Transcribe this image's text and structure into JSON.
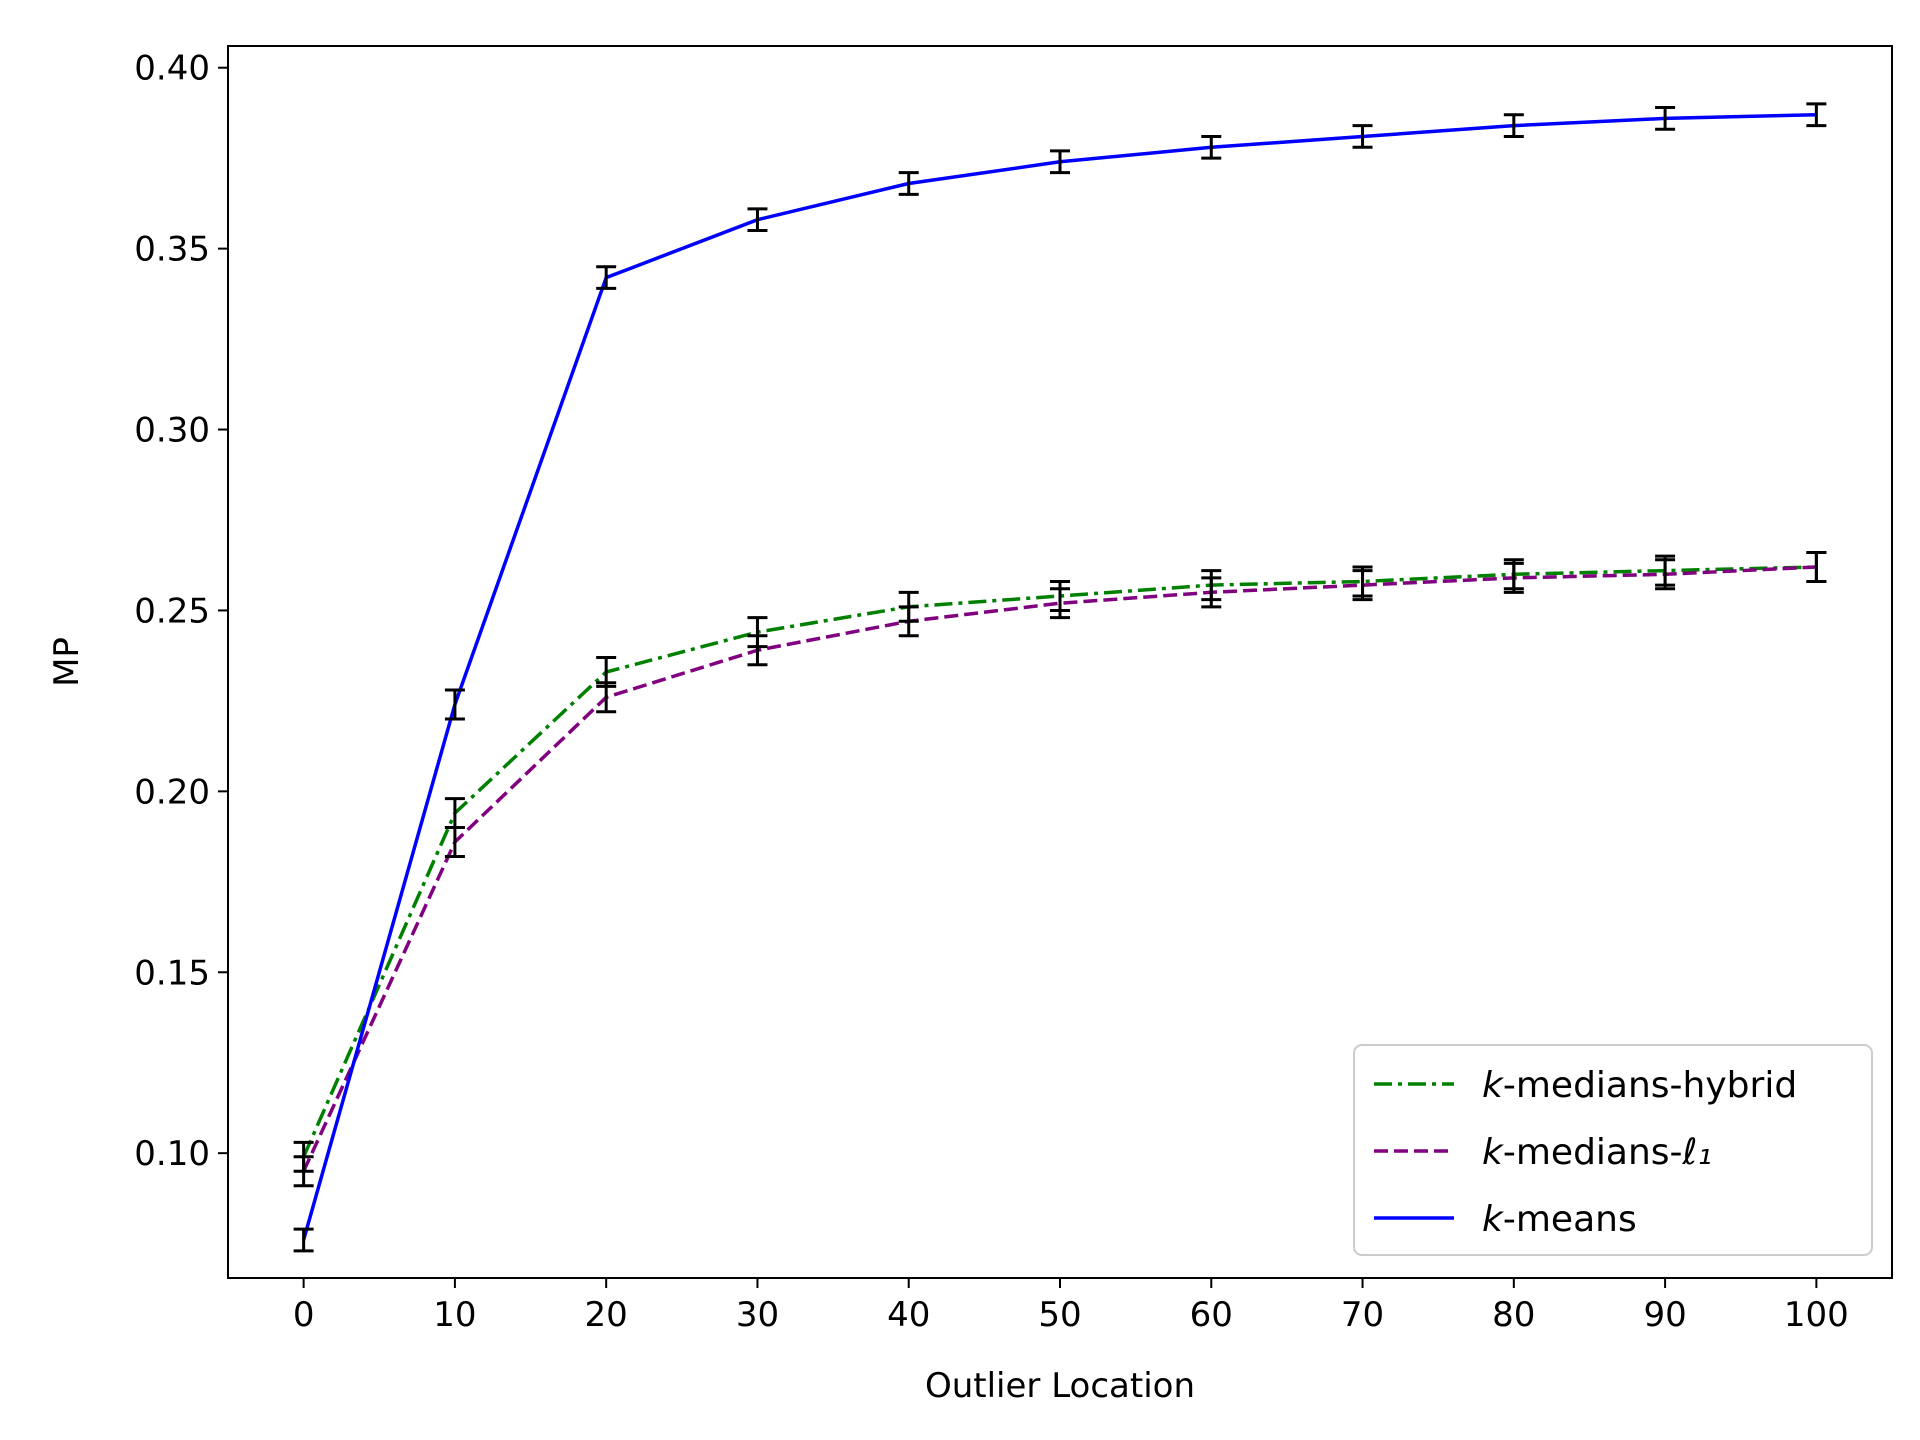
{
  "chart_data": {
    "type": "line",
    "title": "",
    "xlabel": "Outlier Location",
    "ylabel": "MP",
    "xlim": [
      -5,
      105
    ],
    "ylim": [
      0.0655,
      0.406
    ],
    "xticks": [
      0,
      10,
      20,
      30,
      40,
      50,
      60,
      70,
      80,
      90,
      100
    ],
    "xtick_labels": [
      "0",
      "10",
      "20",
      "30",
      "40",
      "50",
      "60",
      "70",
      "80",
      "90",
      "100"
    ],
    "yticks": [
      0.1,
      0.15,
      0.2,
      0.25,
      0.3,
      0.35,
      0.4
    ],
    "ytick_labels": [
      "0.10",
      "0.15",
      "0.20",
      "0.25",
      "0.30",
      "0.35",
      "0.40"
    ],
    "grid": false,
    "legend_position": "bottom-right",
    "x": [
      0,
      10,
      20,
      30,
      40,
      50,
      60,
      70,
      80,
      90,
      100
    ],
    "series": [
      {
        "name_prefix": "k",
        "name_suffix": "-medians-hybrid",
        "color": "#008000",
        "style": "dashdot",
        "values": [
          0.099,
          0.194,
          0.233,
          0.244,
          0.251,
          0.254,
          0.257,
          0.258,
          0.26,
          0.261,
          0.262
        ],
        "errors": [
          0.004,
          0.004,
          0.004,
          0.004,
          0.004,
          0.004,
          0.004,
          0.004,
          0.004,
          0.004,
          0.004
        ]
      },
      {
        "name_prefix": "k",
        "name_suffix": "-medians-",
        "name_math": "ℓ₁",
        "color": "#800080",
        "style": "dashed",
        "values": [
          0.095,
          0.186,
          0.226,
          0.239,
          0.247,
          0.252,
          0.255,
          0.257,
          0.259,
          0.26,
          0.262
        ],
        "errors": [
          0.004,
          0.004,
          0.004,
          0.004,
          0.004,
          0.004,
          0.004,
          0.004,
          0.004,
          0.004,
          0.004
        ]
      },
      {
        "name_prefix": "k",
        "name_suffix": "-means",
        "color": "#0000ff",
        "style": "solid",
        "values": [
          0.076,
          0.224,
          0.342,
          0.358,
          0.368,
          0.374,
          0.378,
          0.381,
          0.384,
          0.386,
          0.387
        ],
        "errors": [
          0.003,
          0.004,
          0.003,
          0.003,
          0.003,
          0.003,
          0.003,
          0.003,
          0.003,
          0.003,
          0.003
        ]
      }
    ]
  }
}
